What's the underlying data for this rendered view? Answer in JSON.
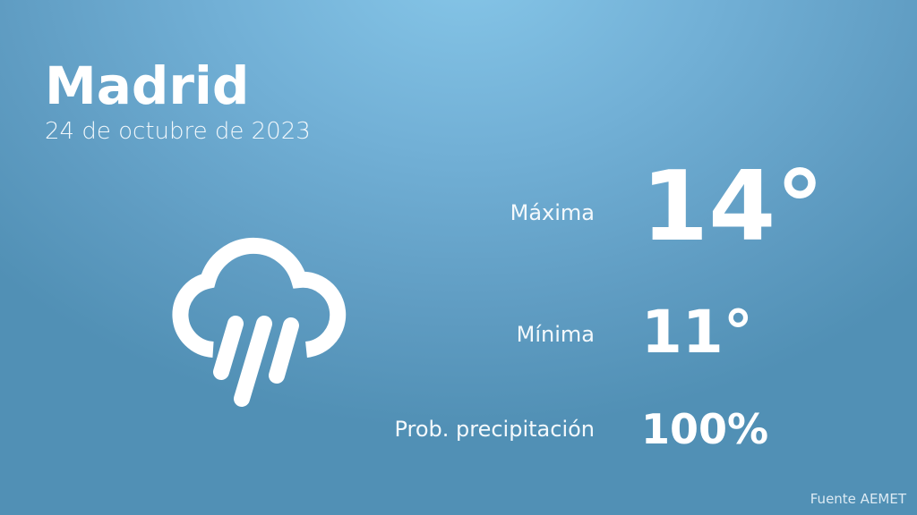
{
  "city": "Madrid",
  "date": "24 de octubre de 2023",
  "weather_icon": "cloud-rain-icon",
  "max": {
    "label": "Máxima",
    "value": "14°"
  },
  "min": {
    "label": "Mínima",
    "value": "11°"
  },
  "precip": {
    "label": "Prob. precipitación",
    "value": "100%"
  },
  "source": "Fuente AEMET"
}
